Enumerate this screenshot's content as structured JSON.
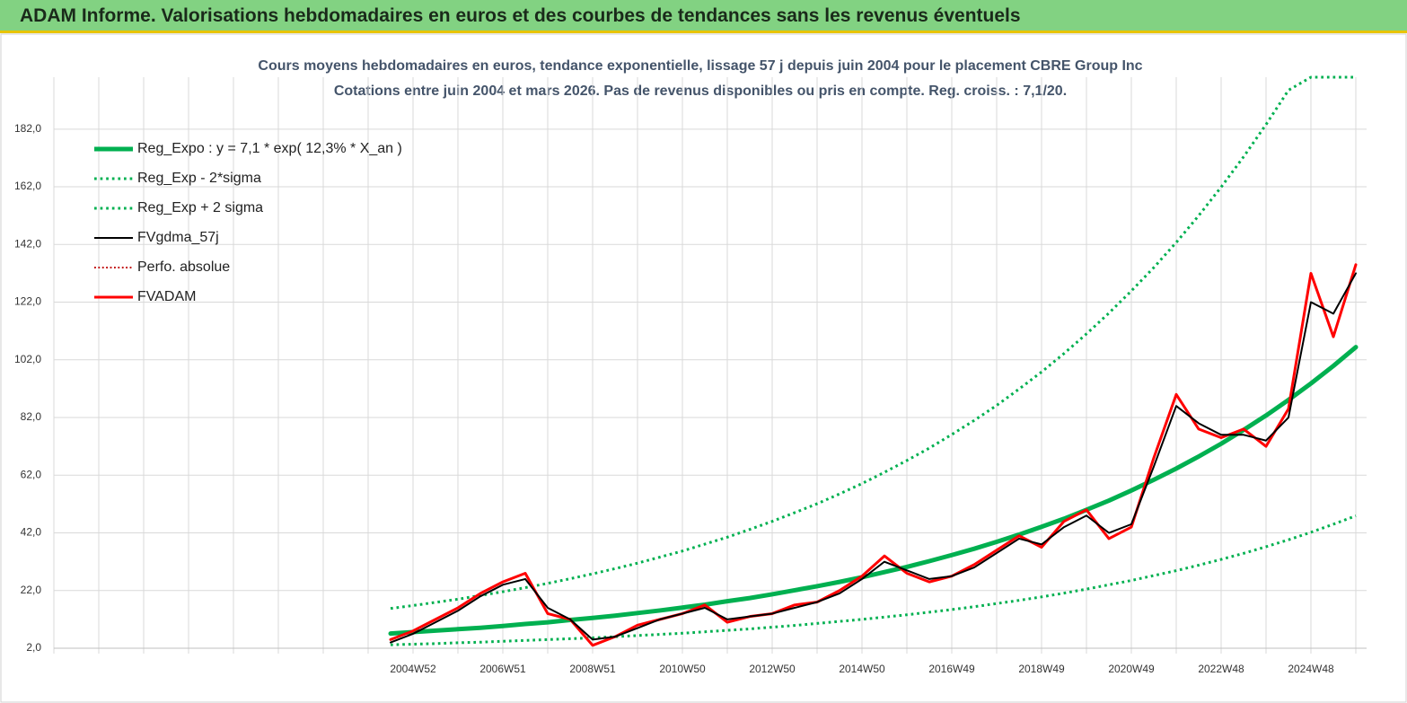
{
  "header": {
    "title": "ADAM Informe. Valorisations hebdomadaires en euros et des courbes de tendances sans les revenus éventuels"
  },
  "chart_data": {
    "type": "line",
    "title": "Cours moyens hebdomadaires en euros, tendance exponentielle, lissage 57 j depuis juin 2004 pour le placement CBRE Group Inc",
    "subtitle": "Cotations entre juin 2004 et mars 2026. Pas de revenus disponibles ou pris en compte. Reg. croiss. : 7,1/20.",
    "categories": [
      null,
      null,
      null,
      null,
      null,
      null,
      null,
      null,
      null,
      null,
      null,
      null,
      null,
      null,
      null,
      null,
      "2004W52",
      null,
      null,
      null,
      "2006W51",
      null,
      null,
      null,
      "2008W51",
      null,
      null,
      null,
      "2010W50",
      null,
      null,
      null,
      "2012W50",
      null,
      null,
      null,
      "2014W50",
      null,
      null,
      null,
      "2016W49",
      null,
      null,
      null,
      "2018W49",
      null,
      null,
      null,
      "2020W49",
      null,
      null,
      null,
      "2022W48",
      null,
      null,
      null,
      "2024W48",
      null,
      null
    ],
    "ylim": [
      2,
      200
    ],
    "yticks": [
      {
        "value": 2,
        "label": "2,0"
      },
      {
        "value": 22,
        "label": "22,0"
      },
      {
        "value": 42,
        "label": "42,0"
      },
      {
        "value": 62,
        "label": "62,0"
      },
      {
        "value": 82,
        "label": "82,0"
      },
      {
        "value": 102,
        "label": "102,0"
      },
      {
        "value": 122,
        "label": "122,0"
      },
      {
        "value": 142,
        "label": "142,0"
      },
      {
        "value": 162,
        "label": "162,0"
      },
      {
        "value": 182,
        "label": "182,0"
      }
    ],
    "grid": true,
    "legend": "upper left",
    "series": [
      {
        "name": "Reg_Expo : y = 7,1 * exp( 12,3% *  X_an )",
        "color": "#00b050",
        "width": 5,
        "dash": "solid",
        "values": [
          null,
          null,
          null,
          null,
          null,
          null,
          null,
          null,
          null,
          null,
          null,
          null,
          null,
          null,
          null,
          7.1,
          7.6,
          8.1,
          8.6,
          9.1,
          9.7,
          10.4,
          11.0,
          11.8,
          12.5,
          13.3,
          14.2,
          15.1,
          16.1,
          17.1,
          18.3,
          19.4,
          20.7,
          22.1,
          23.5,
          25.0,
          26.6,
          28.4,
          30.2,
          32.2,
          34.3,
          36.5,
          38.9,
          41.4,
          44.1,
          46.9,
          50.0,
          53.2,
          56.7,
          60.4,
          64.3,
          68.5,
          72.9,
          77.7,
          82.7,
          88.1,
          93.8,
          99.9,
          106.4
        ]
      },
      {
        "name": "Reg_Exp - 2*sigma",
        "color": "#00b050",
        "width": 3,
        "dash": "dotted",
        "values": [
          null,
          null,
          null,
          null,
          null,
          null,
          null,
          null,
          null,
          null,
          null,
          null,
          null,
          null,
          null,
          3.2,
          3.4,
          3.6,
          3.9,
          4.1,
          4.4,
          4.7,
          5.0,
          5.3,
          5.6,
          6.0,
          6.4,
          6.8,
          7.2,
          7.7,
          8.2,
          8.7,
          9.3,
          9.9,
          10.6,
          11.3,
          12.0,
          12.8,
          13.6,
          14.5,
          15.4,
          16.4,
          17.5,
          18.6,
          19.8,
          21.1,
          22.5,
          24.0,
          25.5,
          27.2,
          28.9,
          30.8,
          32.8,
          34.9,
          37.2,
          39.6,
          42.2,
          45.0,
          47.9
        ]
      },
      {
        "name": "Reg_Exp + 2 sigma",
        "color": "#00b050",
        "width": 3,
        "dash": "dotted",
        "values": [
          null,
          null,
          null,
          null,
          null,
          null,
          null,
          null,
          null,
          null,
          null,
          null,
          null,
          null,
          null,
          15.8,
          16.8,
          17.9,
          19.0,
          20.3,
          21.6,
          23.0,
          24.5,
          26.1,
          27.8,
          29.6,
          31.5,
          33.6,
          35.7,
          38.1,
          40.5,
          43.2,
          46.0,
          49.0,
          52.1,
          55.5,
          59.1,
          63.0,
          67.1,
          71.4,
          76.1,
          81.0,
          86.2,
          91.9,
          97.8,
          104.2,
          111.0,
          118.2,
          125.9,
          134.0,
          142.7,
          152.0,
          161.9,
          172.4,
          183.6,
          195.5,
          200,
          200,
          200
        ]
      },
      {
        "name": "FVgdma_57j",
        "color": "#000000",
        "width": 2,
        "dash": "solid",
        "values": [
          null,
          null,
          null,
          null,
          null,
          null,
          null,
          null,
          null,
          null,
          null,
          null,
          null,
          null,
          null,
          4,
          7,
          11,
          15,
          20,
          24,
          26,
          16,
          12,
          5,
          6,
          9,
          12,
          14,
          16,
          12,
          13,
          14,
          16,
          18,
          21,
          26,
          32,
          29,
          26,
          27,
          30,
          35,
          40,
          38,
          44,
          48,
          42,
          45,
          65,
          86,
          80,
          76,
          76,
          74,
          82,
          122,
          118,
          132
        ]
      },
      {
        "name": "Perfo. absolue",
        "color": "#c00000",
        "width": 2,
        "dash": "dotted",
        "values": [
          null,
          null,
          null,
          null,
          null,
          null,
          null,
          null,
          null,
          null,
          null,
          null,
          null,
          null,
          null,
          5,
          8,
          12,
          16,
          21,
          25,
          28,
          14,
          12,
          3,
          6,
          10,
          12,
          14,
          17,
          11,
          13,
          14,
          17,
          18,
          22,
          27,
          34,
          28,
          25,
          27,
          31,
          36,
          41,
          37,
          46,
          50,
          40,
          44,
          68,
          90,
          78,
          75,
          78,
          72,
          85,
          132,
          110,
          135
        ]
      },
      {
        "name": "FVADAM",
        "color": "#ff0000",
        "width": 3,
        "dash": "solid",
        "values": [
          null,
          null,
          null,
          null,
          null,
          null,
          null,
          null,
          null,
          null,
          null,
          null,
          null,
          null,
          null,
          5,
          8,
          12,
          16,
          21,
          25,
          28,
          14,
          12,
          3,
          6,
          10,
          12,
          14,
          17,
          11,
          13,
          14,
          17,
          18,
          22,
          27,
          34,
          28,
          25,
          27,
          31,
          36,
          41,
          37,
          46,
          50,
          40,
          44,
          68,
          90,
          78,
          75,
          78,
          72,
          85,
          132,
          110,
          135
        ]
      }
    ]
  }
}
